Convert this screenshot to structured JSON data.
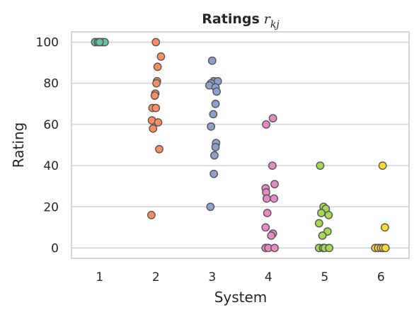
{
  "chart_data": {
    "type": "scatter",
    "style": "stripplot",
    "title": "Ratings",
    "title_math": "r",
    "title_math_sub": "kj",
    "xlabel": "System",
    "ylabel": "Rating",
    "categories": [
      "1",
      "2",
      "3",
      "4",
      "5",
      "6"
    ],
    "ylim": [
      -5,
      105
    ],
    "yticks": [
      0,
      20,
      40,
      60,
      80,
      100
    ],
    "grid": "horizontal",
    "legend": "none",
    "series": [
      {
        "category": "1",
        "color": "#66c2a5",
        "points": [
          {
            "x": -0.08,
            "y": 100
          },
          {
            "x": -0.03,
            "y": 100
          },
          {
            "x": 0.01,
            "y": 100
          },
          {
            "x": 0.05,
            "y": 100
          },
          {
            "x": 0.09,
            "y": 100
          },
          {
            "x": 0.0,
            "y": 100
          }
        ]
      },
      {
        "category": "2",
        "color": "#fc8d62",
        "points": [
          {
            "x": 0.0,
            "y": 100
          },
          {
            "x": 0.09,
            "y": 93
          },
          {
            "x": 0.03,
            "y": 88
          },
          {
            "x": 0.02,
            "y": 81
          },
          {
            "x": 0.01,
            "y": 80
          },
          {
            "x": -0.01,
            "y": 75
          },
          {
            "x": -0.02,
            "y": 74
          },
          {
            "x": -0.06,
            "y": 68
          },
          {
            "x": 0.0,
            "y": 68
          },
          {
            "x": -0.07,
            "y": 62
          },
          {
            "x": 0.04,
            "y": 61
          },
          {
            "x": -0.05,
            "y": 58
          },
          {
            "x": 0.06,
            "y": 48
          },
          {
            "x": -0.08,
            "y": 16
          }
        ]
      },
      {
        "category": "3",
        "color": "#8da0cb",
        "points": [
          {
            "x": 0.0,
            "y": 91
          },
          {
            "x": 0.03,
            "y": 81
          },
          {
            "x": 0.1,
            "y": 81
          },
          {
            "x": -0.02,
            "y": 80
          },
          {
            "x": -0.05,
            "y": 79
          },
          {
            "x": 0.06,
            "y": 78
          },
          {
            "x": 0.08,
            "y": 76
          },
          {
            "x": 0.06,
            "y": 70
          },
          {
            "x": 0.02,
            "y": 65
          },
          {
            "x": -0.02,
            "y": 59
          },
          {
            "x": 0.07,
            "y": 51
          },
          {
            "x": 0.06,
            "y": 49
          },
          {
            "x": 0.04,
            "y": 45
          },
          {
            "x": 0.03,
            "y": 36
          },
          {
            "x": -0.03,
            "y": 20
          }
        ]
      },
      {
        "category": "4",
        "color": "#e78ac3",
        "points": [
          {
            "x": 0.08,
            "y": 63
          },
          {
            "x": -0.04,
            "y": 60
          },
          {
            "x": 0.07,
            "y": 40
          },
          {
            "x": 0.11,
            "y": 31
          },
          {
            "x": -0.05,
            "y": 29
          },
          {
            "x": -0.04,
            "y": 27
          },
          {
            "x": -0.03,
            "y": 24
          },
          {
            "x": 0.1,
            "y": 24
          },
          {
            "x": -0.02,
            "y": 17
          },
          {
            "x": -0.05,
            "y": 10
          },
          {
            "x": 0.08,
            "y": 7
          },
          {
            "x": 0.05,
            "y": 6
          },
          {
            "x": -0.05,
            "y": 0
          },
          {
            "x": 0.0,
            "y": 0
          },
          {
            "x": 0.11,
            "y": 0
          }
        ]
      },
      {
        "category": "5",
        "color": "#a6d854",
        "points": [
          {
            "x": -0.08,
            "y": 40
          },
          {
            "x": -0.02,
            "y": 20
          },
          {
            "x": 0.02,
            "y": 19
          },
          {
            "x": -0.06,
            "y": 17
          },
          {
            "x": 0.07,
            "y": 16
          },
          {
            "x": -0.1,
            "y": 12
          },
          {
            "x": 0.05,
            "y": 8
          },
          {
            "x": -0.04,
            "y": 6
          },
          {
            "x": -0.1,
            "y": 0
          },
          {
            "x": -0.03,
            "y": 0
          },
          {
            "x": 0.0,
            "y": 0
          },
          {
            "x": 0.08,
            "y": 0
          }
        ]
      },
      {
        "category": "6",
        "color": "#ffd92f",
        "points": [
          {
            "x": 0.03,
            "y": 40
          },
          {
            "x": 0.07,
            "y": 10
          },
          {
            "x": -0.1,
            "y": 0
          },
          {
            "x": -0.05,
            "y": 0
          },
          {
            "x": 0.0,
            "y": 0
          },
          {
            "x": 0.04,
            "y": 0
          },
          {
            "x": 0.08,
            "y": 0
          }
        ]
      }
    ],
    "colors": {
      "marker_edge": "#555555",
      "grid": "#cccccc",
      "spine": "#cccccc",
      "text": "#262626"
    }
  }
}
